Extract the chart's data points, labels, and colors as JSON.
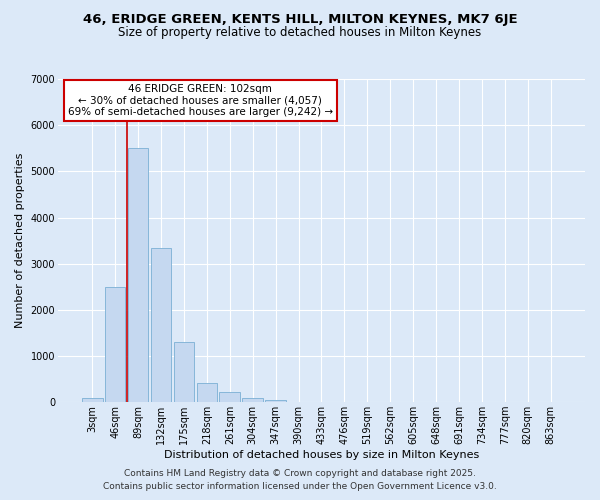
{
  "title_line1": "46, ERIDGE GREEN, KENTS HILL, MILTON KEYNES, MK7 6JE",
  "title_line2": "Size of property relative to detached houses in Milton Keynes",
  "xlabel": "Distribution of detached houses by size in Milton Keynes",
  "ylabel": "Number of detached properties",
  "categories": [
    "3sqm",
    "46sqm",
    "89sqm",
    "132sqm",
    "175sqm",
    "218sqm",
    "261sqm",
    "304sqm",
    "347sqm",
    "390sqm",
    "433sqm",
    "476sqm",
    "519sqm",
    "562sqm",
    "605sqm",
    "648sqm",
    "691sqm",
    "734sqm",
    "777sqm",
    "820sqm",
    "863sqm"
  ],
  "values": [
    100,
    2500,
    5500,
    3350,
    1300,
    420,
    215,
    90,
    55,
    0,
    0,
    0,
    0,
    0,
    0,
    0,
    0,
    0,
    0,
    0,
    0
  ],
  "bar_color": "#c5d8f0",
  "bar_edge_color": "#7bafd4",
  "vline_color": "#cc0000",
  "vline_x_position": 1.5,
  "annotation_title": "46 ERIDGE GREEN: 102sqm",
  "annotation_line1": "← 30% of detached houses are smaller (4,057)",
  "annotation_line2": "69% of semi-detached houses are larger (9,242) →",
  "annotation_box_facecolor": "white",
  "annotation_box_edgecolor": "#cc0000",
  "ylim": [
    0,
    7000
  ],
  "yticks": [
    0,
    1000,
    2000,
    3000,
    4000,
    5000,
    6000,
    7000
  ],
  "background_color": "#dce9f8",
  "grid_color": "white",
  "footer_line1": "Contains HM Land Registry data © Crown copyright and database right 2025.",
  "footer_line2": "Contains public sector information licensed under the Open Government Licence v3.0.",
  "title_fontsize": 9.5,
  "subtitle_fontsize": 8.5,
  "axis_label_fontsize": 8,
  "tick_fontsize": 7,
  "annotation_fontsize": 7.5,
  "footer_fontsize": 6.5
}
